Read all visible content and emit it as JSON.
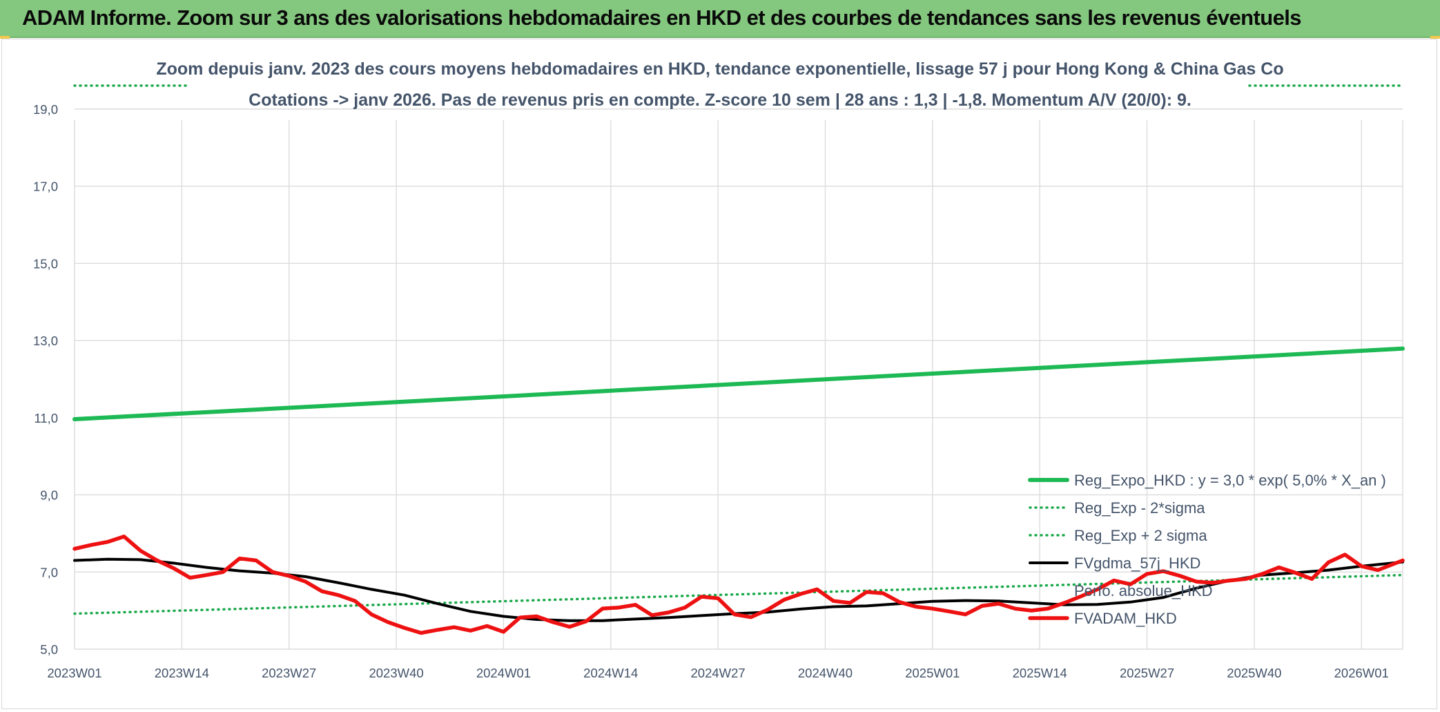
{
  "page": {
    "banner_title": "ADAM Informe. Zoom sur 3 ans des valorisations hebdomadaires en HKD et des courbes de tendances sans les revenus éventuels"
  },
  "colors": {
    "banner_bg": "#84c77e",
    "green": "#1db954",
    "red": "#ee1111",
    "black": "#000000",
    "dotted_green": "#1aa84a",
    "grid": "#dcdcdc",
    "text": "#44546a"
  },
  "chart_data": {
    "type": "line",
    "title": "Zoom depuis janv. 2023 des cours moyens hebdomadaires en HKD, tendance exponentielle, lissage 57 j pour Hong Kong & China Gas Co",
    "subtitle": "Cotations -> janv 2026. Pas de revenus pris en compte. Z-score 10 sem | 28 ans : 1,3 | -1,8. Momentum A/V (20/0): 9.",
    "xlabel": "",
    "ylabel": "",
    "x_tick_labels": [
      "2023W01",
      "2023W14",
      "2023W27",
      "2023W40",
      "2024W01",
      "2024W14",
      "2024W27",
      "2024W40",
      "2025W01",
      "2025W14",
      "2025W27",
      "2025W40",
      "2026W01"
    ],
    "weeks_per_tick": 13,
    "num_points": 162,
    "ylim": [
      5,
      20
    ],
    "y_tick_labels": [
      "5,0",
      "7,0",
      "9,0",
      "11,0",
      "13,0",
      "15,0",
      "17,0",
      "19,0"
    ],
    "y_ticks": [
      5,
      7,
      9,
      11,
      13,
      15,
      17,
      19
    ],
    "grid": true,
    "legend_position": "bottom-right",
    "series": [
      {
        "name": "Reg_Expo_HKD : y = 3,0 * exp( 5,0% *  X_an )",
        "style": "solid-thick",
        "color": "#1db954",
        "x_index": [
          0,
          161
        ],
        "values": [
          10.96,
          12.79
        ]
      },
      {
        "name": "Reg_Exp - 2*sigma",
        "style": "dotted",
        "color": "#1aa84a",
        "x_index": [
          0,
          161
        ],
        "values": [
          5.92,
          6.92
        ]
      },
      {
        "name": "Reg_Exp + 2 sigma",
        "style": "dotted",
        "color": "#1aa84a",
        "x_index": [
          0,
          161
        ],
        "values": [
          20.0,
          20.0
        ]
      },
      {
        "name": "FVgdma_57j_HKD",
        "style": "solid",
        "color": "#000000",
        "x_index": [
          0,
          4,
          8,
          12,
          16,
          20,
          24,
          28,
          32,
          36,
          40,
          44,
          48,
          52,
          56,
          60,
          64,
          68,
          72,
          76,
          80,
          84,
          88,
          92,
          96,
          100,
          104,
          108,
          112,
          116,
          120,
          124,
          128,
          132,
          136,
          140,
          144,
          148,
          152,
          156,
          161
        ],
        "values": [
          7.3,
          7.33,
          7.32,
          7.23,
          7.12,
          7.03,
          6.97,
          6.88,
          6.72,
          6.55,
          6.4,
          6.18,
          5.98,
          5.85,
          5.77,
          5.74,
          5.74,
          5.78,
          5.82,
          5.87,
          5.92,
          5.96,
          6.04,
          6.1,
          6.12,
          6.18,
          6.24,
          6.26,
          6.25,
          6.2,
          6.15,
          6.16,
          6.22,
          6.34,
          6.58,
          6.78,
          6.92,
          6.98,
          7.05,
          7.15,
          7.26
        ]
      },
      {
        "name": "Perfo. absolue_HKD",
        "style": "none",
        "color": "#ffffff",
        "x_index": [],
        "values": []
      },
      {
        "name": "FVADAM_HKD",
        "style": "solid-thick",
        "color": "#ee1111",
        "x_index": [
          0,
          2,
          4,
          6,
          8,
          10,
          12,
          14,
          16,
          18,
          20,
          22,
          24,
          26,
          28,
          30,
          32,
          34,
          36,
          38,
          40,
          42,
          44,
          46,
          48,
          50,
          52,
          54,
          56,
          58,
          60,
          62,
          64,
          66,
          68,
          70,
          72,
          74,
          76,
          78,
          80,
          82,
          84,
          86,
          88,
          90,
          92,
          94,
          96,
          98,
          100,
          102,
          104,
          106,
          108,
          110,
          112,
          114,
          116,
          118,
          120,
          122,
          124,
          126,
          128,
          130,
          132,
          134,
          136,
          138,
          140,
          142,
          144,
          146,
          148,
          150,
          152,
          154,
          156,
          158,
          161
        ],
        "values": [
          7.6,
          7.7,
          7.78,
          7.92,
          7.55,
          7.3,
          7.1,
          6.85,
          6.92,
          7.0,
          7.35,
          7.3,
          7.0,
          6.9,
          6.75,
          6.5,
          6.4,
          6.25,
          5.9,
          5.7,
          5.55,
          5.42,
          5.5,
          5.57,
          5.48,
          5.6,
          5.45,
          5.82,
          5.85,
          5.7,
          5.58,
          5.72,
          6.05,
          6.08,
          6.15,
          5.88,
          5.95,
          6.08,
          6.36,
          6.32,
          5.9,
          5.83,
          6.02,
          6.28,
          6.43,
          6.55,
          6.25,
          6.2,
          6.48,
          6.45,
          6.22,
          6.1,
          6.05,
          5.98,
          5.9,
          6.12,
          6.18,
          6.05,
          6.0,
          6.05,
          6.2,
          6.37,
          6.55,
          6.78,
          6.68,
          6.95,
          7.02,
          6.9,
          6.75,
          6.72,
          6.78,
          6.82,
          6.95,
          7.12,
          6.98,
          6.82,
          7.25,
          7.45,
          7.15,
          7.05,
          7.3
        ]
      }
    ]
  }
}
